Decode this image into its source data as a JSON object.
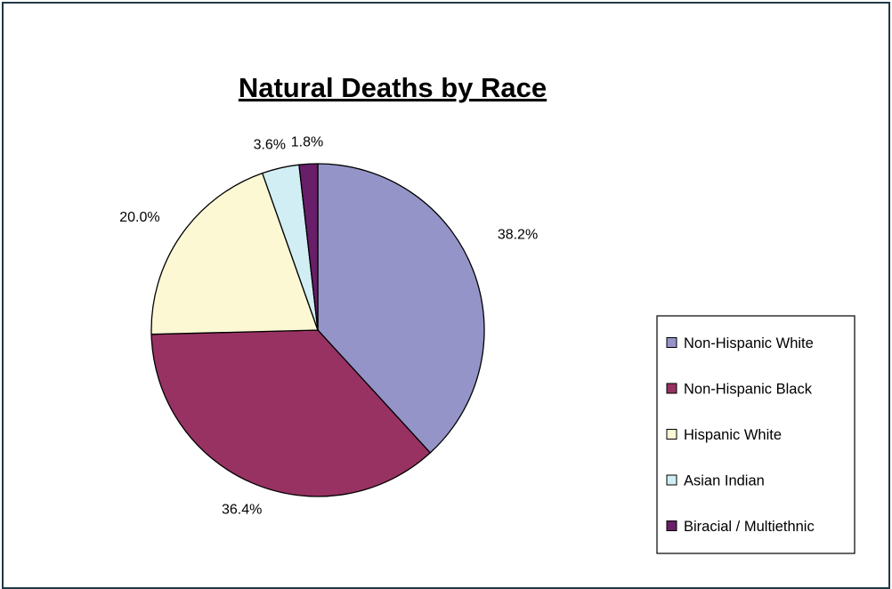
{
  "chart_data": {
    "type": "pie",
    "title": "Natural Deaths by Race",
    "categories": [
      "Non-Hispanic White",
      "Non-Hispanic Black",
      "Hispanic White",
      "Asian Indian",
      "Biracial / Multiethnic"
    ],
    "values": [
      38.2,
      36.4,
      20.0,
      3.6,
      1.8
    ],
    "value_labels": [
      "38.2%",
      "36.4%",
      "20.0%",
      "3.6%",
      "1.8%"
    ],
    "colors": [
      "#9494c8",
      "#983262",
      "#fcf8d4",
      "#d0eef4",
      "#681e68"
    ],
    "start": "12 o'clock",
    "direction": "clockwise",
    "legend_position": "right",
    "grid": false
  }
}
